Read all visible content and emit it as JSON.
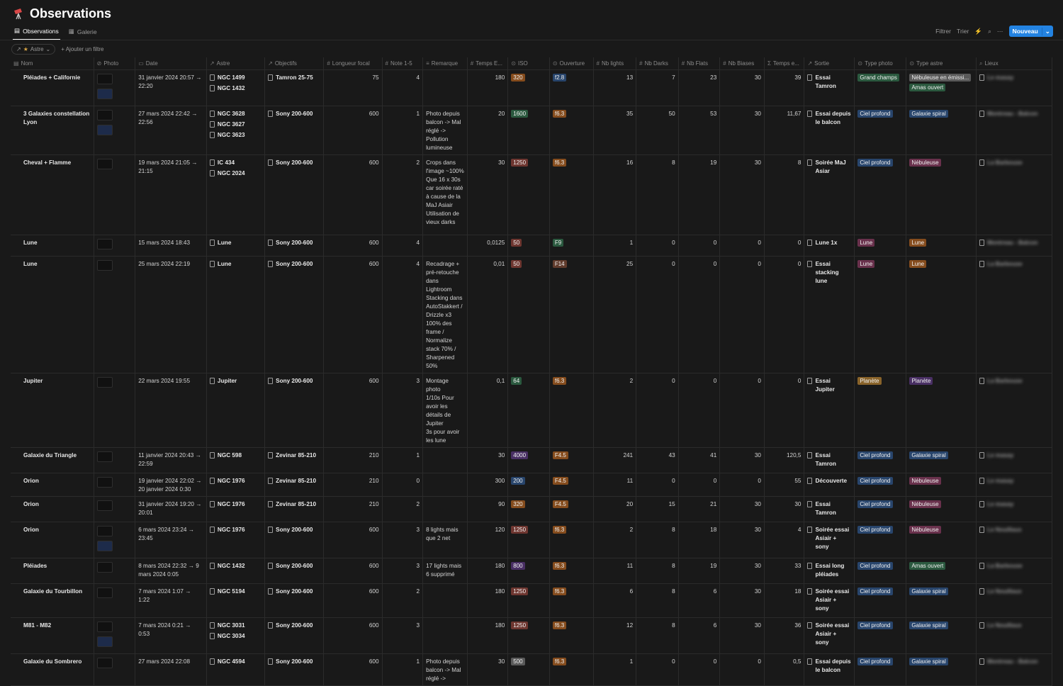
{
  "page": {
    "title": "Observations"
  },
  "views": [
    {
      "label": "Observations",
      "active": true
    },
    {
      "label": "Galerie",
      "active": false
    }
  ],
  "toolbar": {
    "filter": "Filtrer",
    "sort": "Trier",
    "new": "Nouveau"
  },
  "filters": {
    "chip": "Astre",
    "add": "Ajouter un filtre"
  },
  "columns": [
    "Nom",
    "Photo",
    "Date",
    "Astre",
    "Objectifs",
    "Longueur focal",
    "Note 1-5",
    "Remarque",
    "Temps E...",
    "ISO",
    "Ouverture",
    "Nb lights",
    "Nb Darks",
    "Nb Flats",
    "Nb Biases",
    "Temps e...",
    "Sortie",
    "Type photo",
    "Type astre",
    "Lieux"
  ],
  "colors": {
    "green": "#2b593f",
    "blue": "#28456c",
    "pink": "#69314c",
    "orange": "#854c1d",
    "brown": "#603b2c",
    "yellow": "#89632a",
    "purple": "#492f64",
    "red": "#6e3630",
    "gray": "#5a5a5a",
    "thumbDark": "#111111",
    "thumbBlue": "#1d2b4a"
  },
  "rows": [
    {
      "name": "Pléiades + Californie",
      "photos": 2,
      "date": "31 janvier 2024 20:57 → 22:20",
      "astre": [
        "NGC 1499",
        "NGC 1432"
      ],
      "objectif": "Tamron 25-75",
      "focal": "75",
      "note": "4",
      "remarque": "",
      "temps": "180",
      "iso": {
        "v": "320",
        "c": "orange"
      },
      "ouv": {
        "v": "f2.8",
        "c": "blue"
      },
      "lights": "13",
      "darks": "7",
      "flats": "23",
      "biases": "30",
      "total": "39",
      "sortie": "Essai Tamron",
      "typePhoto": [
        {
          "v": "Grand champs",
          "c": "green"
        }
      ],
      "typeAstre": [
        {
          "v": "Nébuleuse en émissi...",
          "c": "gray"
        },
        {
          "v": "Amas ouvert",
          "c": "green"
        }
      ],
      "lieux": "Le masay",
      "h": 34
    },
    {
      "name": "3 Galaxies constellation Lyon",
      "photos": 2,
      "date": "27 mars 2024 22:42 → 22:56",
      "astre": [
        "NGC 3628",
        "NGC 3627",
        "NGC 3623"
      ],
      "objectif": "Sony 200-600",
      "focal": "600",
      "note": "1",
      "remarque": "Photo depuis balcon -> Mal réglé -> Pollution lumineuse",
      "temps": "20",
      "iso": {
        "v": "1600",
        "c": "green"
      },
      "ouv": {
        "v": "f6.3",
        "c": "orange"
      },
      "lights": "35",
      "darks": "50",
      "flats": "53",
      "biases": "30",
      "total": "11,67",
      "sortie": "Essai depuis le balcon",
      "typePhoto": [
        {
          "v": "Ciel profond",
          "c": "blue"
        }
      ],
      "typeAstre": [
        {
          "v": "Galaxie spiral",
          "c": "blue"
        }
      ],
      "lieux": "Montreau - Balcon",
      "h": 66
    },
    {
      "name": "Cheval + Flamme",
      "photos": 1,
      "date": "19 mars 2024 21:05 → 21:15",
      "astre": [
        "IC 434",
        "NGC 2024"
      ],
      "objectif": "Sony 200-600",
      "focal": "600",
      "note": "2",
      "remarque": "Crops dans l'image ~100%\nQue 16 x 30s car soirée raté à cause de la MaJ Asiair\nUtilisation de vieux darks",
      "temps": "30",
      "iso": {
        "v": "1250",
        "c": "red"
      },
      "ouv": {
        "v": "f6.3",
        "c": "orange"
      },
      "lights": "16",
      "darks": "8",
      "flats": "19",
      "biases": "30",
      "total": "8",
      "sortie": "Soirée MaJ Asiar",
      "typePhoto": [
        {
          "v": "Ciel profond",
          "c": "blue"
        }
      ],
      "typeAstre": [
        {
          "v": "Nébuleuse",
          "c": "pink"
        }
      ],
      "lieux": "La Barbouse",
      "h": 113
    },
    {
      "name": "Lune",
      "photos": 1,
      "date": "15 mars 2024 18:43",
      "astre": [
        "Lune"
      ],
      "objectif": "Sony 200-600",
      "focal": "600",
      "note": "4",
      "remarque": "",
      "temps": "0,0125",
      "iso": {
        "v": "50",
        "c": "red"
      },
      "ouv": {
        "v": "F9",
        "c": "green"
      },
      "lights": "1",
      "darks": "0",
      "flats": "0",
      "biases": "0",
      "total": "0",
      "sortie": "Lune 1x",
      "typePhoto": [
        {
          "v": "Lune",
          "c": "pink"
        }
      ],
      "typeAstre": [
        {
          "v": "Lune",
          "c": "orange"
        }
      ],
      "lieux": "Montreau - Balcon",
      "h": 19
    },
    {
      "name": "Lune",
      "photos": 1,
      "date": "25 mars 2024 22:19",
      "astre": [
        "Lune"
      ],
      "objectif": "Sony 200-600",
      "focal": "600",
      "note": "4",
      "remarque": "Recadrage + pré-retouche dans Lightroom\nStacking dans AutoStakkert / Drizzle x3 100% des frame / Normalize stack 70% / Sharpened 50%",
      "temps": "0,01",
      "iso": {
        "v": "50",
        "c": "red"
      },
      "ouv": {
        "v": "F14",
        "c": "brown"
      },
      "lights": "25",
      "darks": "0",
      "flats": "0",
      "biases": "0",
      "total": "0",
      "sortie": "Essai stacking lune",
      "typePhoto": [
        {
          "v": "Lune",
          "c": "pink"
        }
      ],
      "typeAstre": [
        {
          "v": "Lune",
          "c": "orange"
        }
      ],
      "lieux": "La Barbouse",
      "h": 160
    },
    {
      "name": "Jupiter",
      "photos": 1,
      "date": "22 mars 2024 19:55",
      "astre": [
        "Jupiter"
      ],
      "objectif": "Sony 200-600",
      "focal": "600",
      "note": "3",
      "remarque": "Montage photo\n1/10s Pour avoir les détails de Jupiter\n3s pour avoir les lune",
      "temps": "0,1",
      "iso": {
        "v": "64",
        "c": "green"
      },
      "ouv": {
        "v": "f6.3",
        "c": "orange"
      },
      "lights": "2",
      "darks": "0",
      "flats": "0",
      "biases": "0",
      "total": "0",
      "sortie": "Essai Jupiter",
      "typePhoto": [
        {
          "v": "Planète",
          "c": "yellow"
        }
      ],
      "typeAstre": [
        {
          "v": "Planète",
          "c": "purple"
        }
      ],
      "lieux": "La Barbouse",
      "h": 101
    },
    {
      "name": "Galaxie du Triangle",
      "photos": 1,
      "date": "11 janvier 2024 20:43 → 22:59",
      "astre": [
        "NGC 598"
      ],
      "objectif": "Zevinar 85-210",
      "focal": "210",
      "note": "1",
      "remarque": "",
      "temps": "30",
      "iso": {
        "v": "4000",
        "c": "purple"
      },
      "ouv": {
        "v": "F4.5",
        "c": "orange"
      },
      "lights": "241",
      "darks": "43",
      "flats": "41",
      "biases": "30",
      "total": "120,5",
      "sortie": "Essai Tamron",
      "typePhoto": [
        {
          "v": "Ciel profond",
          "c": "blue"
        }
      ],
      "typeAstre": [
        {
          "v": "Galaxie spiral",
          "c": "blue"
        }
      ],
      "lieux": "Le masay",
      "h": 31
    },
    {
      "name": "Orion",
      "photos": 1,
      "date": "19 janvier 2024 22:02 → 20 janvier 2024 0:30",
      "astre": [
        "NGC 1976"
      ],
      "objectif": "Zevinar 85-210",
      "focal": "210",
      "note": "0",
      "remarque": "",
      "temps": "300",
      "iso": {
        "v": "200",
        "c": "blue"
      },
      "ouv": {
        "v": "F4.5",
        "c": "orange"
      },
      "lights": "11",
      "darks": "0",
      "flats": "0",
      "biases": "0",
      "total": "55",
      "sortie": "Découverte",
      "typePhoto": [
        {
          "v": "Ciel profond",
          "c": "blue"
        }
      ],
      "typeAstre": [
        {
          "v": "Nébuleuse",
          "c": "pink"
        }
      ],
      "lieux": "Le masay",
      "h": 30
    },
    {
      "name": "Orion",
      "photos": 1,
      "date": "31 janvier 2024 19:20 → 20:01",
      "astre": [
        "NGC 1976"
      ],
      "objectif": "Zevinar 85-210",
      "focal": "210",
      "note": "2",
      "remarque": "",
      "temps": "90",
      "iso": {
        "v": "320",
        "c": "orange"
      },
      "ouv": {
        "v": "F4.5",
        "c": "orange"
      },
      "lights": "20",
      "darks": "15",
      "flats": "21",
      "biases": "30",
      "total": "30",
      "sortie": "Essai Tamron",
      "typePhoto": [
        {
          "v": "Ciel profond",
          "c": "blue"
        }
      ],
      "typeAstre": [
        {
          "v": "Nébuleuse",
          "c": "pink"
        }
      ],
      "lieux": "Le masay",
      "h": 31
    },
    {
      "name": "Orion",
      "photos": 2,
      "date": "6 mars 2024 23:24 → 23:45",
      "astre": [
        "NGC 1976"
      ],
      "objectif": "Sony 200-600",
      "focal": "600",
      "note": "3",
      "remarque": "8 lights mais que 2 net",
      "temps": "120",
      "iso": {
        "v": "1250",
        "c": "red"
      },
      "ouv": {
        "v": "f6.3",
        "c": "orange"
      },
      "lights": "2",
      "darks": "8",
      "flats": "18",
      "biases": "30",
      "total": "4",
      "sortie": "Soirée essai Asiair + sony",
      "typePhoto": [
        {
          "v": "Ciel profond",
          "c": "blue"
        }
      ],
      "typeAstre": [
        {
          "v": "Nébuleuse",
          "c": "pink"
        }
      ],
      "lieux": "Le Nouillaux",
      "h": 31
    },
    {
      "name": "Pléiades",
      "photos": 1,
      "date": "8 mars 2024 22:32 → 9 mars 2024 0:05",
      "astre": [
        "NGC 1432"
      ],
      "objectif": "Sony 200-600",
      "focal": "600",
      "note": "3",
      "remarque": "17 lights mais 6 supprimé",
      "temps": "180",
      "iso": {
        "v": "800",
        "c": "purple"
      },
      "ouv": {
        "v": "f6.3",
        "c": "orange"
      },
      "lights": "11",
      "darks": "8",
      "flats": "19",
      "biases": "30",
      "total": "33",
      "sortie": "Essai long pléiades",
      "typePhoto": [
        {
          "v": "Ciel profond",
          "c": "blue"
        }
      ],
      "typeAstre": [
        {
          "v": "Amas ouvert",
          "c": "green"
        }
      ],
      "lieux": "La Barbouse",
      "h": 31
    },
    {
      "name": "Galaxie du Tourbillon",
      "photos": 1,
      "date": "7 mars 2024 1:07 → 1:22",
      "astre": [
        "NGC 5194"
      ],
      "objectif": "Sony 200-600",
      "focal": "600",
      "note": "2",
      "remarque": "",
      "temps": "180",
      "iso": {
        "v": "1250",
        "c": "red"
      },
      "ouv": {
        "v": "f6.3",
        "c": "orange"
      },
      "lights": "6",
      "darks": "8",
      "flats": "6",
      "biases": "30",
      "total": "18",
      "sortie": "Soirée essai Asiair + sony",
      "typePhoto": [
        {
          "v": "Ciel profond",
          "c": "blue"
        }
      ],
      "typeAstre": [
        {
          "v": "Galaxie spiral",
          "c": "blue"
        }
      ],
      "lieux": "Le Nouillaux",
      "h": 31
    },
    {
      "name": "M81 - M82",
      "photos": 2,
      "date": "7 mars 2024 0:21 → 0:53",
      "astre": [
        "NGC 3031",
        "NGC 3034"
      ],
      "objectif": "Sony 200-600",
      "focal": "600",
      "note": "3",
      "remarque": "",
      "temps": "180",
      "iso": {
        "v": "1250",
        "c": "red"
      },
      "ouv": {
        "v": "f6.3",
        "c": "orange"
      },
      "lights": "12",
      "darks": "8",
      "flats": "6",
      "biases": "30",
      "total": "36",
      "sortie": "Soirée essai Asiair + sony",
      "typePhoto": [
        {
          "v": "Ciel profond",
          "c": "blue"
        }
      ],
      "typeAstre": [
        {
          "v": "Galaxie spiral",
          "c": "blue"
        }
      ],
      "lieux": "Le Nouillaux",
      "h": 35
    },
    {
      "name": "Galaxie du Sombrero",
      "photos": 1,
      "date": "27 mars 2024 22:08",
      "astre": [
        "NGC 4594"
      ],
      "objectif": "Sony 200-600",
      "focal": "600",
      "note": "1",
      "remarque": "Photo depuis balcon -> Mal réglé ->",
      "temps": "30",
      "iso": {
        "v": "500",
        "c": "gray"
      },
      "ouv": {
        "v": "f6.3",
        "c": "orange"
      },
      "lights": "1",
      "darks": "0",
      "flats": "0",
      "biases": "0",
      "total": "0,5",
      "sortie": "Essai depuis le balcon",
      "typePhoto": [
        {
          "v": "Ciel profond",
          "c": "blue"
        }
      ],
      "typeAstre": [
        {
          "v": "Galaxie spiral",
          "c": "blue"
        }
      ],
      "lieux": "Montreau - Balcon",
      "h": 40
    }
  ]
}
